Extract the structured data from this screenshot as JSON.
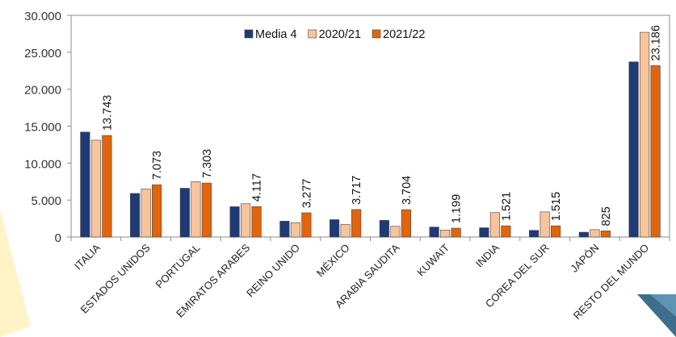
{
  "chart_data": {
    "type": "bar",
    "categories": [
      "ITALIA",
      "ESTADOS UNIDOS",
      "PORTUGAL",
      "EMIRATOS ARABES",
      "REINO UNIDO",
      "MÉXICO",
      "ARABIA SAUDITA",
      "KUWAIT",
      "INDIA",
      "COREA DEL SUR",
      "JAPÓN",
      "RESTO DEL MUNDO"
    ],
    "series": [
      {
        "name": "Media 4",
        "color": "#1F3A75",
        "values": [
          14200,
          5900,
          6600,
          4100,
          2150,
          2350,
          2250,
          1350,
          1250,
          900,
          650,
          23700
        ]
      },
      {
        "name": "2020/21",
        "color": "#F8C49C",
        "values": [
          13100,
          6500,
          7500,
          4500,
          1950,
          1700,
          1450,
          950,
          3300,
          3400,
          1000,
          27700
        ]
      },
      {
        "name": "2021/22",
        "color": "#E2650D",
        "values": [
          13743,
          7073,
          7303,
          4117,
          3277,
          3717,
          3704,
          1199,
          1521,
          1515,
          825,
          23186
        ]
      }
    ],
    "data_labels": [
      "13.743",
      "7.073",
      "7.303",
      "4.117",
      "3.277",
      "3.717",
      "3.704",
      "1.199",
      "1.521",
      "1.515",
      "825",
      "23.186"
    ],
    "y_ticks": [
      0,
      5000,
      10000,
      15000,
      20000,
      25000,
      30000
    ],
    "y_tick_labels": [
      "0",
      "5.000",
      "10.000",
      "15.000",
      "20.000",
      "25.000",
      "30.000"
    ],
    "ylim": [
      0,
      30000
    ],
    "grid": false,
    "legend_position": "top-center"
  }
}
